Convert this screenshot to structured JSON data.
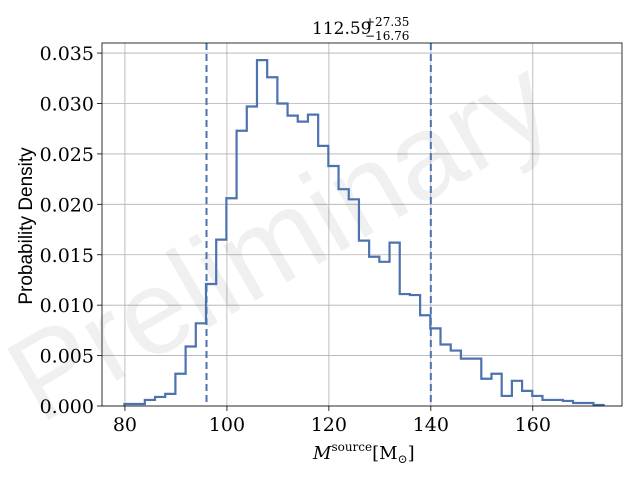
{
  "chart_data": {
    "type": "histogram",
    "title_main": "112.59",
    "title_sup": "+27.35",
    "title_sub": "−16.76",
    "xlabel_main": "M",
    "xlabel_sup": "source",
    "xlabel_unit": "[M",
    "xlabel_unit_sub": "⊙",
    "xlabel_unit_close": "]",
    "ylabel": "Probability Density",
    "watermark": "Preliminary",
    "xlim": [
      75.5,
      177.5
    ],
    "ylim": [
      0.0,
      0.036
    ],
    "xticks": [
      80,
      100,
      120,
      140,
      160
    ],
    "xtick_labels": [
      "80",
      "100",
      "120",
      "140",
      "160"
    ],
    "yticks": [
      0.0,
      0.005,
      0.01,
      0.015,
      0.02,
      0.025,
      0.03,
      0.035
    ],
    "ytick_labels": [
      "0.000",
      "0.005",
      "0.010",
      "0.015",
      "0.020",
      "0.025",
      "0.030",
      "0.035"
    ],
    "grid": true,
    "line_color": "#4c72b0",
    "bin_edges": [
      79.9,
      81.9,
      83.9,
      85.9,
      87.9,
      89.9,
      91.9,
      93.9,
      95.9,
      97.9,
      99.9,
      101.9,
      103.9,
      105.9,
      107.9,
      109.9,
      111.9,
      113.9,
      115.9,
      117.9,
      119.9,
      121.9,
      123.9,
      125.9,
      127.9,
      129.9,
      131.9,
      133.9,
      135.9,
      137.9,
      139.9,
      141.9,
      143.9,
      145.9,
      147.9,
      149.9,
      151.9,
      153.9,
      155.9,
      157.9,
      159.9,
      161.9,
      163.9,
      165.9,
      167.9,
      169.9,
      171.9,
      173.9
    ],
    "density": [
      0.0002,
      0.0002,
      0.0006,
      0.0009,
      0.0012,
      0.0032,
      0.0059,
      0.0082,
      0.0121,
      0.0165,
      0.0206,
      0.0273,
      0.0297,
      0.0343,
      0.0326,
      0.03,
      0.0288,
      0.0282,
      0.0289,
      0.0258,
      0.0238,
      0.0215,
      0.0205,
      0.0164,
      0.0148,
      0.0143,
      0.0162,
      0.0111,
      0.011,
      0.009,
      0.0077,
      0.0061,
      0.0055,
      0.0047,
      0.0047,
      0.0027,
      0.0032,
      0.001,
      0.0025,
      0.0015,
      0.001,
      0.0006,
      0.0006,
      0.0005,
      0.0003,
      0.0003,
      0.0001,
      0.0002
    ],
    "vlines": [
      96.0,
      140.0
    ]
  }
}
